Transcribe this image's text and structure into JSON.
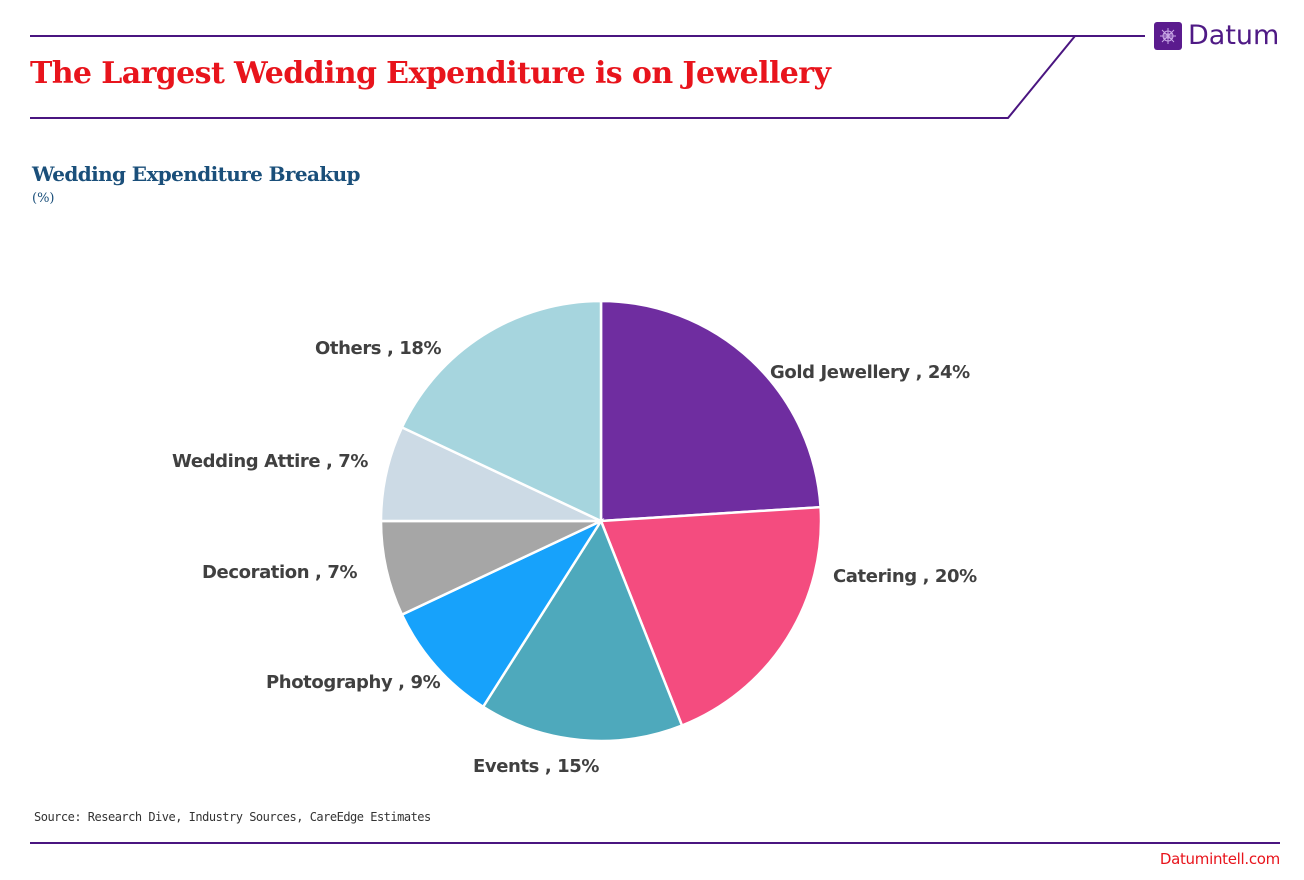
{
  "header": {
    "title": "The Largest Wedding Expenditure is on Jewellery",
    "logo_text": "Datum",
    "logo_icon": "globe-grid-icon",
    "title_color": "#e8141c",
    "accent_color": "#4a1580"
  },
  "chart_title": "Wedding Expenditure Breakup",
  "chart_unit": "(%)",
  "labels": {
    "gold": "Gold Jewellery , 24%",
    "catering": "Catering , 20%",
    "events": "Events , 15%",
    "photography": "Photography , 9%",
    "decoration": "Decoration , 7%",
    "attire": "Wedding Attire , 7%",
    "others": "Others , 18%"
  },
  "chart_data": {
    "type": "pie",
    "title": "Wedding Expenditure Breakup",
    "subtitle": "(%)",
    "categories": [
      "Gold Jewellery",
      "Catering",
      "Events",
      "Photography",
      "Decoration",
      "Wedding Attire",
      "Others"
    ],
    "values": [
      24,
      20,
      15,
      9,
      7,
      7,
      18
    ],
    "colors": [
      "#6f2da0",
      "#f44c7f",
      "#4ea9bc",
      "#17a2fb",
      "#a6a6a6",
      "#ccdae5",
      "#a6d5de"
    ],
    "start_angle": "12 o'clock",
    "direction": "clockwise",
    "label_format": "{category} , {value}%",
    "legend": "none (data labels outside slices)"
  },
  "footer": {
    "source": "Source:  Research Dive, Industry Sources, CareEdge Estimates",
    "site": "Datumintell.com"
  }
}
